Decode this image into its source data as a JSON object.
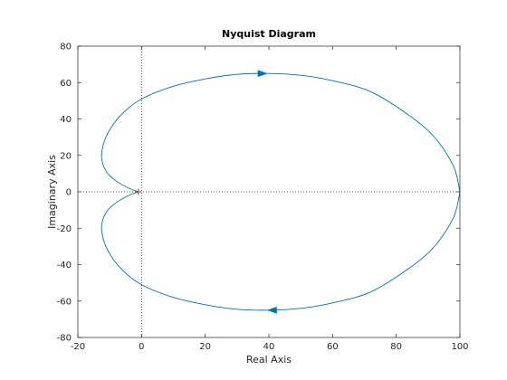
{
  "chart_data": {
    "type": "line",
    "title": "Nyquist Diagram",
    "xlabel": "Real Axis",
    "ylabel": "Imaginary Axis",
    "xlim": [
      -20,
      100
    ],
    "ylim": [
      -80,
      80
    ],
    "xticks": [
      -20,
      0,
      20,
      40,
      60,
      80,
      100
    ],
    "yticks": [
      -80,
      -60,
      -40,
      -20,
      0,
      20,
      40,
      60,
      80
    ],
    "grid": false,
    "line_color": "#0072bd",
    "reference_lines": [
      {
        "orientation": "vertical",
        "value": 0,
        "style": "dotted"
      },
      {
        "orientation": "horizontal",
        "value": 0,
        "style": "dotted"
      }
    ],
    "critical_point": {
      "x": -1,
      "y": 0,
      "marker": "+",
      "color": "#d62728"
    },
    "series": [
      {
        "x": [
          100,
          98,
          92,
          84,
          72,
          60,
          50,
          40,
          30,
          20,
          10,
          0,
          -6,
          -10,
          -12,
          -12.5,
          -11,
          -8,
          -4,
          -1
        ],
        "y": [
          0,
          14,
          30,
          42,
          55,
          61,
          64,
          65,
          64.5,
          62,
          58,
          51,
          43,
          34,
          26,
          18,
          11,
          6,
          2,
          0
        ],
        "direction_arrow": {
          "x": 38,
          "y": 65,
          "heading": "right"
        }
      },
      {
        "x": [
          100,
          98,
          92,
          84,
          72,
          60,
          50,
          40,
          30,
          20,
          10,
          0,
          -6,
          -10,
          -12,
          -12.5,
          -11,
          -8,
          -4,
          -1
        ],
        "y": [
          0,
          -14,
          -30,
          -42,
          -55,
          -61,
          -64,
          -65,
          -64.5,
          -62,
          -58,
          -51,
          -43,
          -34,
          -26,
          -18,
          -11,
          -6,
          -2,
          0
        ],
        "direction_arrow": {
          "x": 41,
          "y": -65,
          "heading": "left"
        }
      }
    ]
  }
}
